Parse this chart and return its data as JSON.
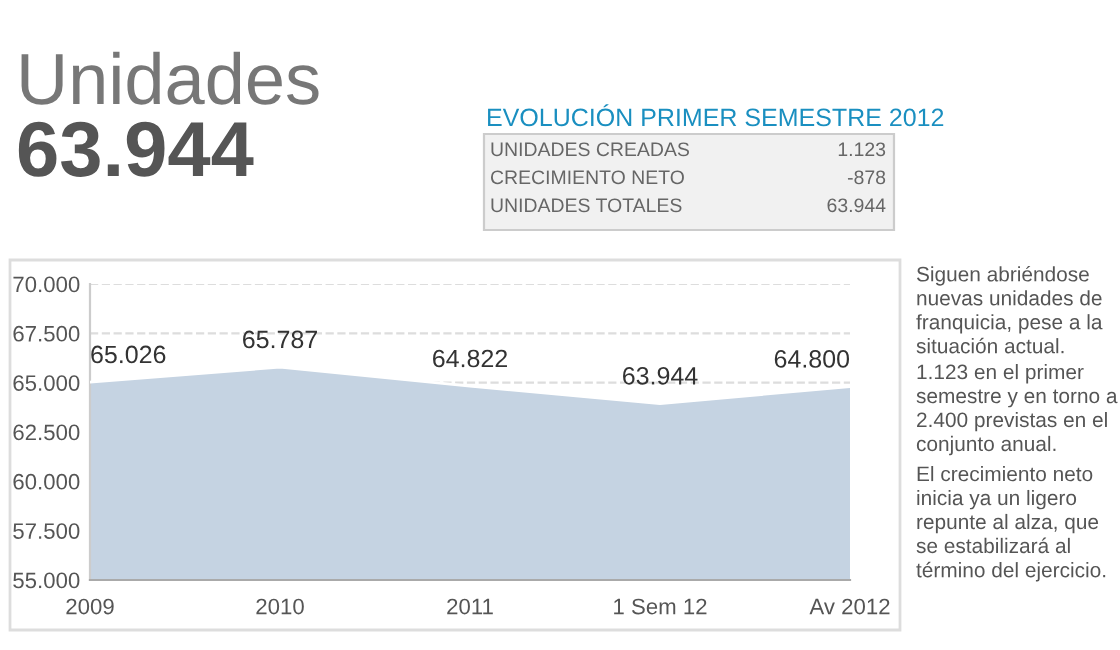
{
  "chart_data": {
    "type": "area",
    "title": "Unidades",
    "subtitle": "63.944",
    "categories": [
      "2009",
      "2010",
      "2011",
      "1 Sem 12",
      "Av 2012"
    ],
    "series": [
      {
        "color": "#c5d3e2",
        "values": [
          65026,
          65787,
          64822,
          63944,
          64800
        ],
        "value_labels": [
          "65.026",
          "65.787",
          "64.822",
          "63.944",
          "64.800"
        ]
      }
    ],
    "ylim": [
      55000,
      70000
    ],
    "yticks": [
      {
        "value": 55000,
        "label": "55.000"
      },
      {
        "value": 57500,
        "label": "57.500"
      },
      {
        "value": 60000,
        "label": "60.000"
      },
      {
        "value": 62500,
        "label": "62.500"
      },
      {
        "value": 65000,
        "label": "65.000"
      },
      {
        "value": 67500,
        "label": "67.500"
      },
      {
        "value": 70000,
        "label": "70.000"
      }
    ],
    "grid": "y",
    "legend": false,
    "annotations": [
      "EVOLUCIÓN PRIMER SEMESTRE 2012",
      "UNIDADES CREADAS",
      "1.123",
      "CRECIMIENTO NETO",
      "-878",
      "UNIDADES TOTALES",
      "63.944",
      "Siguen abriéndose nuevas unidades de franquicia, pese a la situación actual.",
      "1.123 en el primer semestre y en torno a 2.400 previstas en el conjunto anual.",
      "El crecimiento neto inicia ya un ligero repunte al alza, que se estabilizará al término del ejercicio."
    ]
  }
}
